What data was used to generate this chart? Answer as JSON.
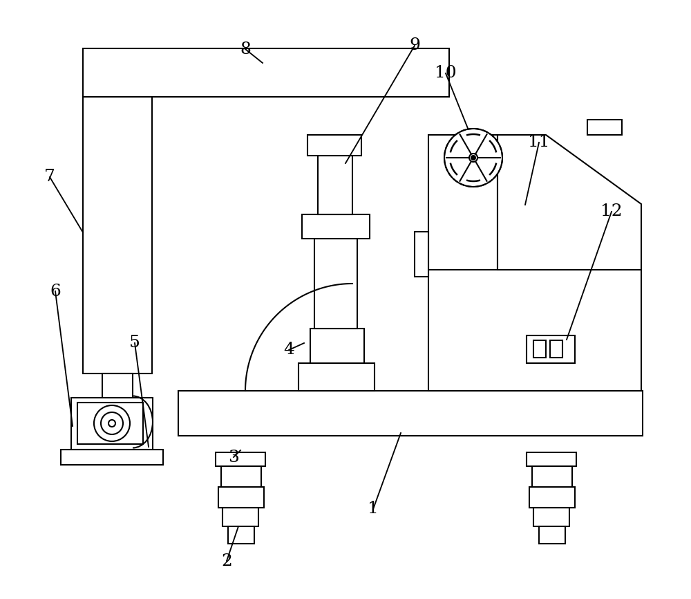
{
  "bg_color": "#ffffff",
  "lc": "#000000",
  "lw": 1.5,
  "fw": 10.0,
  "fh": 8.66
}
